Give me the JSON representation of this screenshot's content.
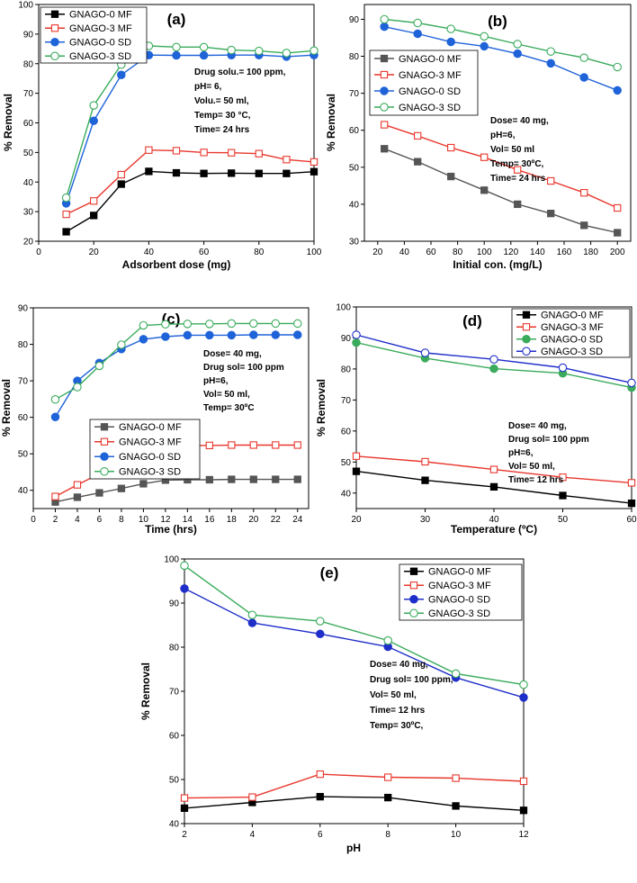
{
  "series_colors": {
    "GNAGO-0 MF": "#000000",
    "GNAGO-3 MF": "#e8372d",
    "GNAGO-0 SD": "#1f63d9",
    "GNAGO-3 SD": "#3aab5c"
  },
  "chart_data": [
    {
      "type": "line",
      "panel_label": "(a)",
      "xlabel": "Adsorbent dose (mg)",
      "ylabel": "% Removal",
      "xlim": [
        0,
        100
      ],
      "ylim": [
        20,
        100
      ],
      "xticks": [
        "0",
        "20",
        "40",
        "60",
        "80",
        "100"
      ],
      "yticks": [
        "20",
        "30",
        "40",
        "50",
        "60",
        "70",
        "80",
        "90",
        "100"
      ],
      "x": [
        10,
        20,
        30,
        40,
        50,
        60,
        70,
        80,
        90,
        100
      ],
      "series": [
        {
          "name": "GNAGO-0 MF",
          "values": [
            23.2,
            28.7,
            39.3,
            43.6,
            43.1,
            42.9,
            43.0,
            42.9,
            42.9,
            43.5
          ]
        },
        {
          "name": "GNAGO-3 MF",
          "values": [
            29.1,
            33.6,
            42.5,
            50.8,
            50.6,
            50.0,
            49.9,
            49.6,
            47.6,
            46.8
          ]
        },
        {
          "name": "GNAGO-0 SD",
          "values": [
            32.8,
            60.7,
            76.2,
            82.9,
            82.8,
            82.8,
            82.9,
            82.9,
            82.4,
            82.9
          ]
        },
        {
          "name": "GNAGO-3 SD",
          "values": [
            34.7,
            65.9,
            79.7,
            86.0,
            85.6,
            85.6,
            84.6,
            84.3,
            83.6,
            84.4
          ]
        }
      ],
      "annotations": [
        "Drug solu.= 100 ppm,",
        "pH= 6,",
        "Volu.= 50 ml,",
        "Temp= 30 °C,",
        "Time= 24 hrs"
      ],
      "legend": "top-left"
    },
    {
      "type": "line",
      "panel_label": "(b)",
      "xlabel": "Initial con. (mg/L)",
      "ylabel": "% Removal",
      "xlim": [
        10,
        210
      ],
      "ylim": [
        30,
        94
      ],
      "xticks": [
        "20",
        "40",
        "60",
        "80",
        "100",
        "120",
        "140",
        "160",
        "180",
        "200"
      ],
      "yticks": [
        "30",
        "40",
        "50",
        "60",
        "70",
        "80",
        "90"
      ],
      "x": [
        25,
        50,
        75,
        100,
        125,
        150,
        175,
        200
      ],
      "series": [
        {
          "name": "GNAGO-0 MF",
          "values": [
            55.0,
            51.5,
            47.5,
            43.8,
            40.0,
            37.5,
            34.3,
            32.3
          ]
        },
        {
          "name": "GNAGO-3 MF",
          "values": [
            61.5,
            58.5,
            55.3,
            52.7,
            49.3,
            46.3,
            43.1,
            39.0
          ]
        },
        {
          "name": "GNAGO-0 SD",
          "values": [
            88.0,
            86.1,
            83.9,
            82.7,
            80.7,
            78.1,
            74.3,
            70.8
          ]
        },
        {
          "name": "GNAGO-3 SD",
          "values": [
            90.0,
            89.0,
            87.4,
            85.4,
            83.3,
            81.3,
            79.6,
            77.1
          ]
        }
      ],
      "annotations": [
        "Dose= 40 mg,",
        "pH=6,",
        "Vol= 50 ml",
        "Temp= 30ºC,",
        "Time= 24 hrs"
      ],
      "legend": "left"
    },
    {
      "type": "line",
      "panel_label": "(c)",
      "xlabel": "Time (hrs)",
      "ylabel": "% Removal",
      "xlim": [
        0,
        25
      ],
      "ylim": [
        35,
        90
      ],
      "xticks": [
        "0",
        "2",
        "4",
        "6",
        "8",
        "10",
        "12",
        "14",
        "16",
        "18",
        "20",
        "22",
        "24"
      ],
      "yticks": [
        "40",
        "50",
        "60",
        "70",
        "80",
        "90"
      ],
      "x": [
        2,
        4,
        6,
        8,
        10,
        12,
        14,
        16,
        18,
        20,
        22,
        24
      ],
      "series": [
        {
          "name": "GNAGO-0 MF",
          "values": [
            36.8,
            38.1,
            39.3,
            40.5,
            41.8,
            42.8,
            42.9,
            42.9,
            43.0,
            43.0,
            43.0,
            43.0
          ]
        },
        {
          "name": "GNAGO-3 MF",
          "values": [
            38.3,
            41.5,
            44.5,
            47.3,
            49.6,
            52.2,
            52.3,
            52.3,
            52.4,
            52.4,
            52.4,
            52.4
          ]
        },
        {
          "name": "GNAGO-0 SD",
          "values": [
            60.1,
            70.0,
            74.9,
            78.7,
            81.4,
            82.1,
            82.5,
            82.5,
            82.5,
            82.6,
            82.6,
            82.6
          ]
        },
        {
          "name": "GNAGO-3 SD",
          "values": [
            64.9,
            68.3,
            74.1,
            79.9,
            85.2,
            85.5,
            85.6,
            85.6,
            85.7,
            85.7,
            85.7,
            85.7
          ]
        }
      ],
      "annotations": [
        "Dose= 40 mg,",
        "Drug sol= 100 ppm",
        "pH=6,",
        "Vol= 50 ml,",
        "Temp= 30ºC"
      ],
      "legend": "center-left"
    },
    {
      "type": "line",
      "panel_label": "(d)",
      "xlabel": "Temperature (ºC)",
      "ylabel": "% Removal",
      "xlim": [
        20,
        60
      ],
      "ylim": [
        35,
        100
      ],
      "xticks": [
        "20",
        "30",
        "40",
        "50",
        "60"
      ],
      "yticks": [
        "40",
        "50",
        "60",
        "70",
        "80",
        "90",
        "100"
      ],
      "x": [
        20,
        30,
        40,
        50,
        60
      ],
      "series": [
        {
          "name": "GNAGO-0 MF",
          "values": [
            47.0,
            44.1,
            42.0,
            39.2,
            36.7
          ]
        },
        {
          "name": "GNAGO-3 MF",
          "values": [
            51.9,
            50.1,
            47.6,
            45.1,
            43.3
          ]
        },
        {
          "name": "GNAGO-0 SD",
          "values": [
            88.5,
            83.5,
            80.1,
            78.6,
            74.0
          ]
        },
        {
          "name": "GNAGO-3 SD",
          "values": [
            91.0,
            85.2,
            83.1,
            80.4,
            75.5
          ]
        }
      ],
      "annotations": [
        "Dose= 40 mg,",
        "Drug sol= 100 ppm",
        "pH=6,",
        "Vol= 50 ml,",
        "Time= 12 hrs"
      ],
      "legend": "top-right"
    },
    {
      "type": "line",
      "panel_label": "(e)",
      "xlabel": "pH",
      "ylabel": "% Removal",
      "xlim": [
        2,
        12
      ],
      "ylim": [
        40,
        100
      ],
      "xticks": [
        "2",
        "4",
        "6",
        "8",
        "10",
        "12"
      ],
      "yticks": [
        "40",
        "50",
        "60",
        "70",
        "80",
        "90",
        "100"
      ],
      "x": [
        2,
        4,
        6,
        8,
        10,
        12
      ],
      "series": [
        {
          "name": "GNAGO-0 MF",
          "values": [
            43.5,
            44.8,
            46.1,
            45.9,
            44.0,
            43.0
          ]
        },
        {
          "name": "GNAGO-3 MF",
          "values": [
            45.8,
            46.0,
            51.2,
            50.5,
            50.3,
            49.6
          ]
        },
        {
          "name": "GNAGO-0 SD",
          "values": [
            93.3,
            85.5,
            83.0,
            80.1,
            73.1,
            68.6
          ]
        },
        {
          "name": "GNAGO-3 SD",
          "values": [
            98.5,
            87.3,
            85.9,
            81.5,
            74.0,
            71.5
          ]
        }
      ],
      "annotations": [
        "Dose= 40 mg,",
        "Drug sol= 100 ppm,",
        "Vol= 50 ml,",
        "Time= 12 hrs",
        "Temp= 30ºC,"
      ],
      "legend": "top-right"
    }
  ]
}
